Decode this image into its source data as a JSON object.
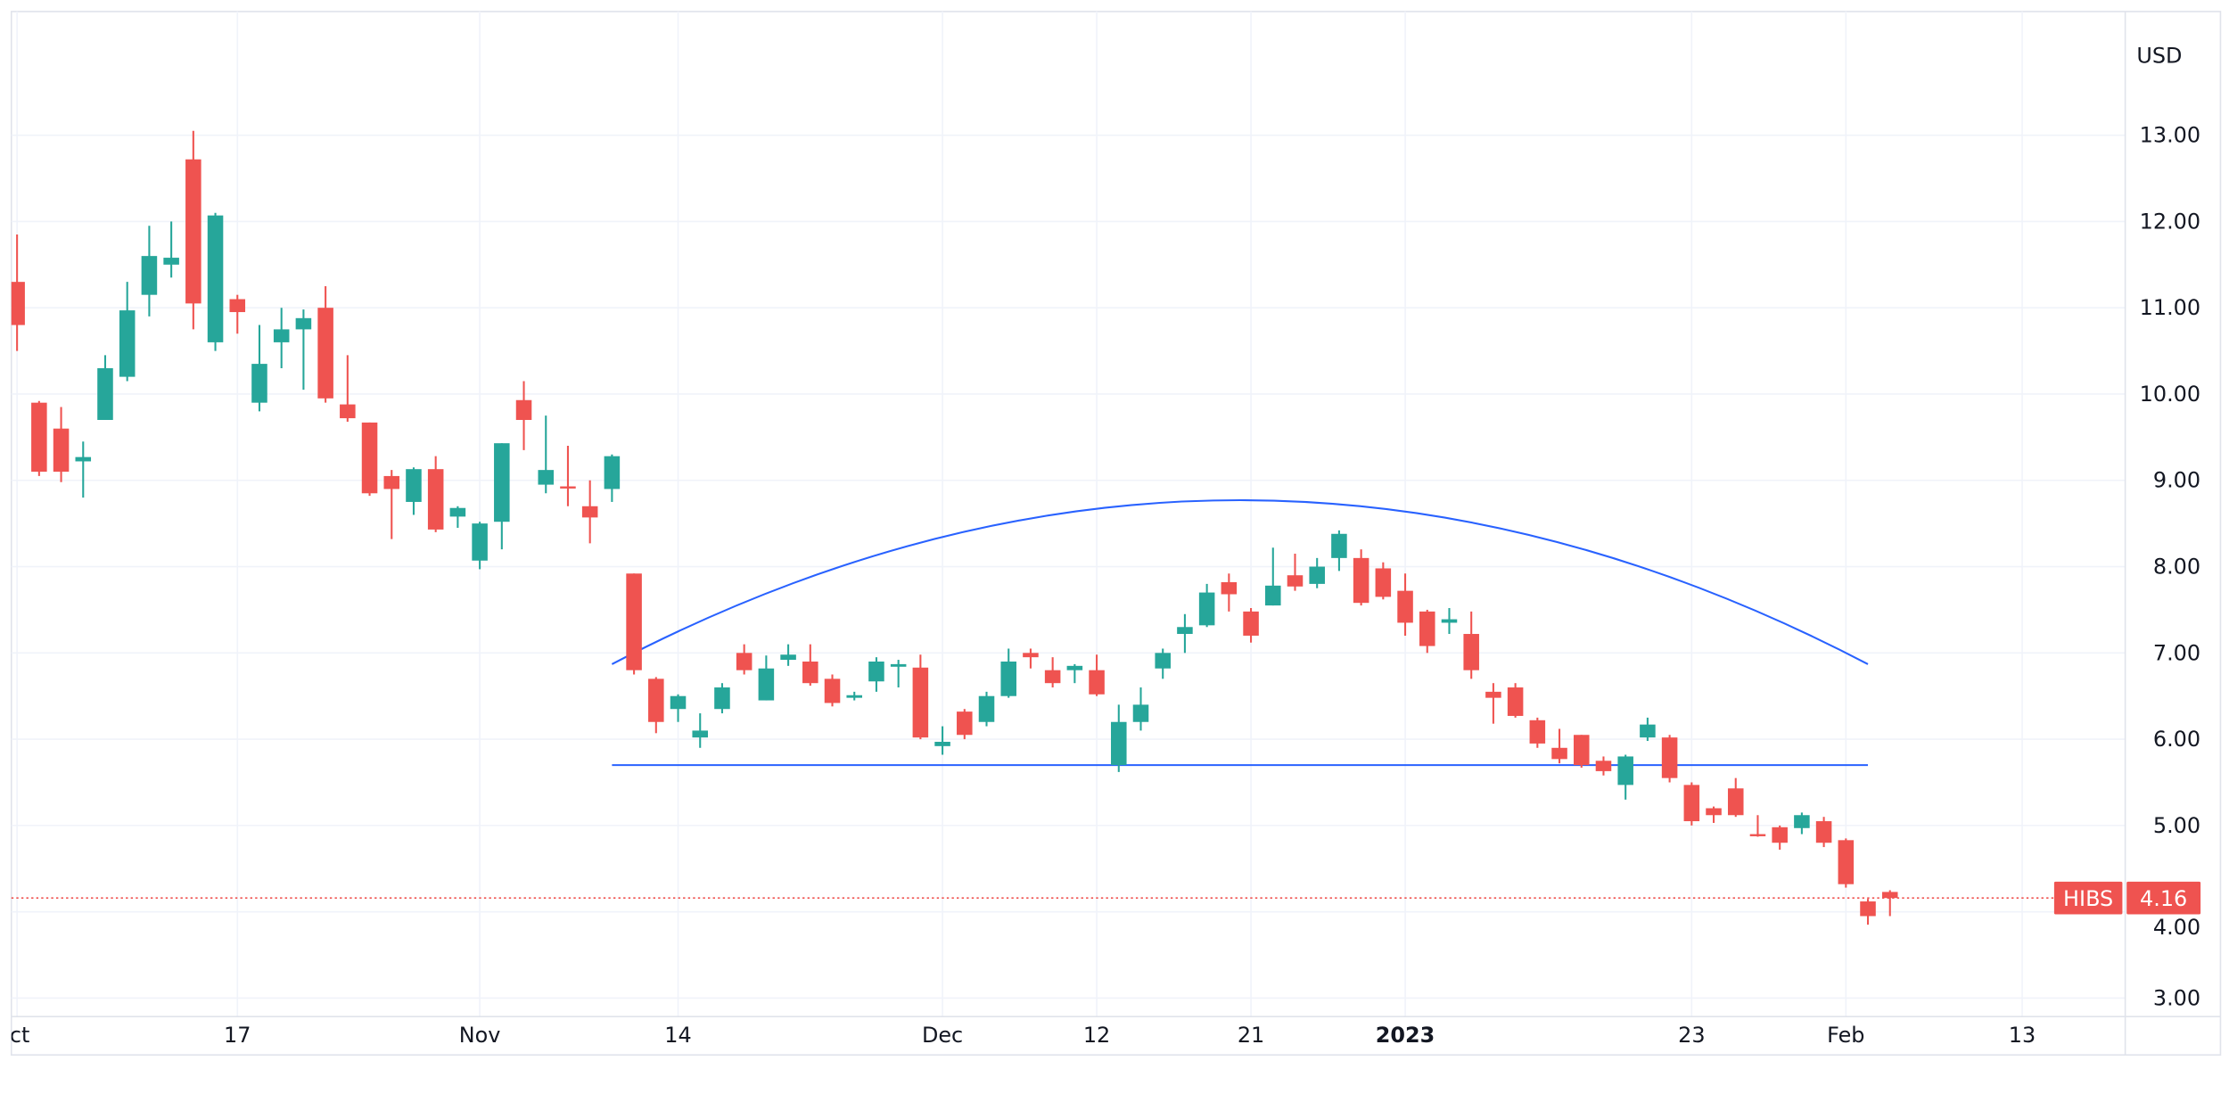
{
  "chart_data": {
    "type": "candlestick",
    "symbol": "HIBS",
    "currency_label": "USD",
    "last_price": "4.16",
    "ylim": [
      3,
      13
    ],
    "grid": true,
    "colors": {
      "up": "#26a69a",
      "down": "#ef5350",
      "drawing": "#2962ff",
      "grid": "#f0f3fa",
      "text": "#131722"
    },
    "y_ticks": [
      "3.00",
      "4.00",
      "5.00",
      "6.00",
      "7.00",
      "8.00",
      "9.00",
      "10.00",
      "11.00",
      "12.00",
      "13.00"
    ],
    "x_ticks": [
      {
        "label": "Oct",
        "date": "2022-10-03"
      },
      {
        "label": "17",
        "date": "2022-10-17"
      },
      {
        "label": "Nov",
        "date": "2022-11-01"
      },
      {
        "label": "14",
        "date": "2022-11-14"
      },
      {
        "label": "Dec",
        "date": "2022-12-01"
      },
      {
        "label": "12",
        "date": "2022-12-12"
      },
      {
        "label": "21",
        "date": "2022-12-21"
      },
      {
        "label": "2023",
        "date": "2023-01-03",
        "bold": true
      },
      {
        "label": "23",
        "date": "2023-01-23"
      },
      {
        "label": "Feb",
        "date": "2023-02-01"
      },
      {
        "label": "13",
        "date": "2023-02-13"
      }
    ],
    "columns": [
      "date",
      "open",
      "high",
      "low",
      "close"
    ],
    "candles": [
      [
        "2022-10-03",
        11.3,
        11.85,
        10.5,
        10.8
      ],
      [
        "2022-10-04",
        9.9,
        9.92,
        9.05,
        9.1
      ],
      [
        "2022-10-05",
        9.6,
        9.85,
        8.98,
        9.1
      ],
      [
        "2022-10-06",
        9.22,
        9.45,
        8.8,
        9.27
      ],
      [
        "2022-10-07",
        9.7,
        10.45,
        9.7,
        10.3
      ],
      [
        "2022-10-10",
        10.2,
        11.3,
        10.15,
        10.97
      ],
      [
        "2022-10-11",
        11.15,
        11.95,
        10.9,
        11.6
      ],
      [
        "2022-10-12",
        11.5,
        12.0,
        11.35,
        11.58
      ],
      [
        "2022-10-13",
        12.72,
        13.05,
        10.75,
        11.05
      ],
      [
        "2022-10-14",
        10.6,
        12.1,
        10.5,
        12.07
      ],
      [
        "2022-10-17",
        11.1,
        11.15,
        10.7,
        10.95
      ],
      [
        "2022-10-18",
        9.9,
        10.8,
        9.8,
        10.35
      ],
      [
        "2022-10-19",
        10.6,
        11.0,
        10.3,
        10.75
      ],
      [
        "2022-10-20",
        10.75,
        10.98,
        10.05,
        10.88
      ],
      [
        "2022-10-21",
        11.0,
        11.25,
        9.9,
        9.95
      ],
      [
        "2022-10-24",
        9.88,
        10.45,
        9.68,
        9.72
      ],
      [
        "2022-10-25",
        9.67,
        9.67,
        8.82,
        8.85
      ],
      [
        "2022-10-26",
        9.05,
        9.12,
        8.32,
        8.9
      ],
      [
        "2022-10-27",
        8.75,
        9.15,
        8.6,
        9.13
      ],
      [
        "2022-10-28",
        9.13,
        9.28,
        8.4,
        8.43
      ],
      [
        "2022-10-31",
        8.58,
        8.7,
        8.45,
        8.68
      ],
      [
        "2022-11-01",
        8.07,
        8.52,
        7.97,
        8.5
      ],
      [
        "2022-11-02",
        8.52,
        9.43,
        8.2,
        9.43
      ],
      [
        "2022-11-03",
        9.93,
        10.15,
        9.35,
        9.7
      ],
      [
        "2022-11-04",
        8.95,
        9.75,
        8.85,
        9.12
      ],
      [
        "2022-11-07",
        8.93,
        9.4,
        8.7,
        8.91
      ],
      [
        "2022-11-08",
        8.7,
        9.0,
        8.27,
        8.57
      ],
      [
        "2022-11-09",
        8.9,
        9.3,
        8.75,
        9.28
      ],
      [
        "2022-11-10",
        7.92,
        7.92,
        6.75,
        6.8
      ],
      [
        "2022-11-11",
        6.7,
        6.72,
        6.07,
        6.2
      ],
      [
        "2022-11-14",
        6.35,
        6.52,
        6.2,
        6.5
      ],
      [
        "2022-11-15",
        6.02,
        6.3,
        5.9,
        6.1
      ],
      [
        "2022-11-16",
        6.35,
        6.65,
        6.3,
        6.6
      ],
      [
        "2022-11-17",
        7.0,
        7.1,
        6.75,
        6.8
      ],
      [
        "2022-11-18",
        6.45,
        6.97,
        6.45,
        6.82
      ],
      [
        "2022-11-21",
        6.92,
        7.1,
        6.85,
        6.98
      ],
      [
        "2022-11-22",
        6.9,
        7.1,
        6.62,
        6.65
      ],
      [
        "2022-11-23",
        6.7,
        6.75,
        6.38,
        6.42
      ],
      [
        "2022-11-25",
        6.48,
        6.55,
        6.45,
        6.51
      ],
      [
        "2022-11-28",
        6.67,
        6.95,
        6.55,
        6.9
      ],
      [
        "2022-11-29",
        6.84,
        6.92,
        6.6,
        6.87
      ],
      [
        "2022-11-30",
        6.83,
        6.98,
        6.0,
        6.02
      ],
      [
        "2022-12-01",
        5.92,
        6.15,
        5.82,
        5.97
      ],
      [
        "2022-12-02",
        6.32,
        6.35,
        6.0,
        6.05
      ],
      [
        "2022-12-05",
        6.2,
        6.55,
        6.15,
        6.5
      ],
      [
        "2022-12-06",
        6.5,
        7.05,
        6.48,
        6.9
      ],
      [
        "2022-12-07",
        7.0,
        7.05,
        6.82,
        6.95
      ],
      [
        "2022-12-08",
        6.8,
        6.95,
        6.6,
        6.65
      ],
      [
        "2022-12-09",
        6.8,
        6.87,
        6.65,
        6.85
      ],
      [
        "2022-12-12",
        6.8,
        6.98,
        6.5,
        6.52
      ],
      [
        "2022-12-13",
        5.7,
        6.4,
        5.62,
        6.2
      ],
      [
        "2022-12-14",
        6.2,
        6.6,
        6.1,
        6.4
      ],
      [
        "2022-12-15",
        6.82,
        7.05,
        6.7,
        7.0
      ],
      [
        "2022-12-16",
        7.22,
        7.45,
        7.0,
        7.3
      ],
      [
        "2022-12-19",
        7.32,
        7.8,
        7.3,
        7.7
      ],
      [
        "2022-12-20",
        7.82,
        7.92,
        7.48,
        7.68
      ],
      [
        "2022-12-21",
        7.48,
        7.52,
        7.12,
        7.2
      ],
      [
        "2022-12-22",
        7.55,
        8.22,
        7.55,
        7.78
      ],
      [
        "2022-12-23",
        7.9,
        8.15,
        7.72,
        7.77
      ],
      [
        "2022-12-27",
        7.8,
        8.1,
        7.75,
        8.0
      ],
      [
        "2022-12-28",
        8.1,
        8.42,
        7.95,
        8.38
      ],
      [
        "2022-12-29",
        8.1,
        8.2,
        7.55,
        7.58
      ],
      [
        "2022-12-30",
        7.98,
        8.05,
        7.62,
        7.65
      ],
      [
        "2023-01-03",
        7.72,
        7.92,
        7.2,
        7.35
      ],
      [
        "2023-01-04",
        7.48,
        7.5,
        7.0,
        7.08
      ],
      [
        "2023-01-05",
        7.35,
        7.52,
        7.22,
        7.39
      ],
      [
        "2023-01-06",
        7.22,
        7.48,
        6.7,
        6.8
      ],
      [
        "2023-01-09",
        6.55,
        6.65,
        6.18,
        6.48
      ],
      [
        "2023-01-10",
        6.6,
        6.65,
        6.25,
        6.27
      ],
      [
        "2023-01-11",
        6.22,
        6.25,
        5.9,
        5.95
      ],
      [
        "2023-01-12",
        5.9,
        6.12,
        5.72,
        5.77
      ],
      [
        "2023-01-13",
        6.05,
        6.05,
        5.67,
        5.7
      ],
      [
        "2023-01-17",
        5.75,
        5.8,
        5.58,
        5.63
      ],
      [
        "2023-01-18",
        5.47,
        5.82,
        5.3,
        5.8
      ],
      [
        "2023-01-19",
        6.02,
        6.25,
        5.98,
        6.17
      ],
      [
        "2023-01-20",
        6.02,
        6.05,
        5.5,
        5.55
      ],
      [
        "2023-01-23",
        5.47,
        5.5,
        5.0,
        5.05
      ],
      [
        "2023-01-24",
        5.2,
        5.22,
        5.03,
        5.12
      ],
      [
        "2023-01-25",
        5.43,
        5.55,
        5.1,
        5.12
      ],
      [
        "2023-01-26",
        4.9,
        5.12,
        4.87,
        4.88
      ],
      [
        "2023-01-27",
        4.98,
        5.0,
        4.72,
        4.8
      ],
      [
        "2023-01-30",
        4.97,
        5.15,
        4.9,
        5.12
      ],
      [
        "2023-01-31",
        5.05,
        5.1,
        4.75,
        4.8
      ],
      [
        "2023-02-01",
        4.83,
        4.85,
        4.28,
        4.32
      ],
      [
        "2023-02-02",
        4.12,
        4.15,
        3.85,
        3.95
      ],
      [
        "2023-02-03",
        4.23,
        4.25,
        3.95,
        4.16
      ]
    ],
    "drawings": [
      {
        "type": "arc",
        "start": {
          "date": "2022-11-09",
          "price": 6.87
        },
        "end": {
          "date": "2023-02-02",
          "price": 6.87
        },
        "peak_price": 8.77
      },
      {
        "type": "horizontal-segment",
        "start_date": "2022-11-09",
        "end_date": "2023-02-02",
        "price": 5.7
      }
    ]
  }
}
